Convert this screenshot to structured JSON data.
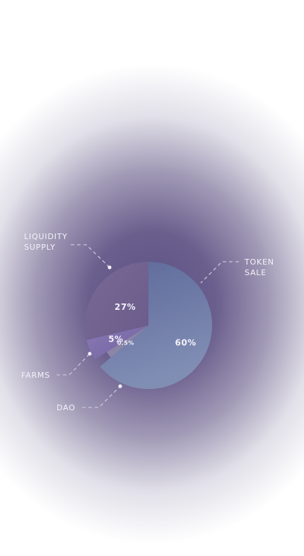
{
  "chart_data": {
    "type": "pie",
    "slices": [
      {
        "label": "TOKEN SALE",
        "value": 60,
        "value_label": "60%",
        "color": "#6673a2"
      },
      {
        "label": "DAO",
        "value": 0.5,
        "value_label": "0.5%",
        "color": "#8a86a8"
      },
      {
        "label": "FARMS",
        "value": 5,
        "value_label": "5%",
        "color": "#7c6aa8"
      },
      {
        "label": "LIQUIDITY SUPPLY",
        "value": 27,
        "value_label": "27%",
        "color": "#75648e"
      }
    ],
    "legend": "callout-labels"
  },
  "labels": {
    "liquidity_supply_line1": "LIQUIDITY",
    "liquidity_supply_line2": "SUPPLY",
    "token_sale_line1": "TOKEN",
    "token_sale_line2": "SALE",
    "farms": "FARMS",
    "dao": "DAO"
  }
}
